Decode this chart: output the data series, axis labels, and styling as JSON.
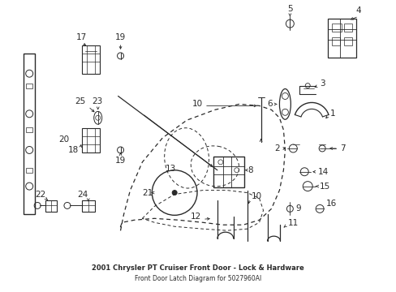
{
  "title": "2001 Chrysler PT Cruiser Front Door - Lock & Hardware",
  "subtitle": "Front Door Latch Diagram for 5027960AI",
  "bg_color": "#ffffff",
  "line_color": "#2a2a2a"
}
